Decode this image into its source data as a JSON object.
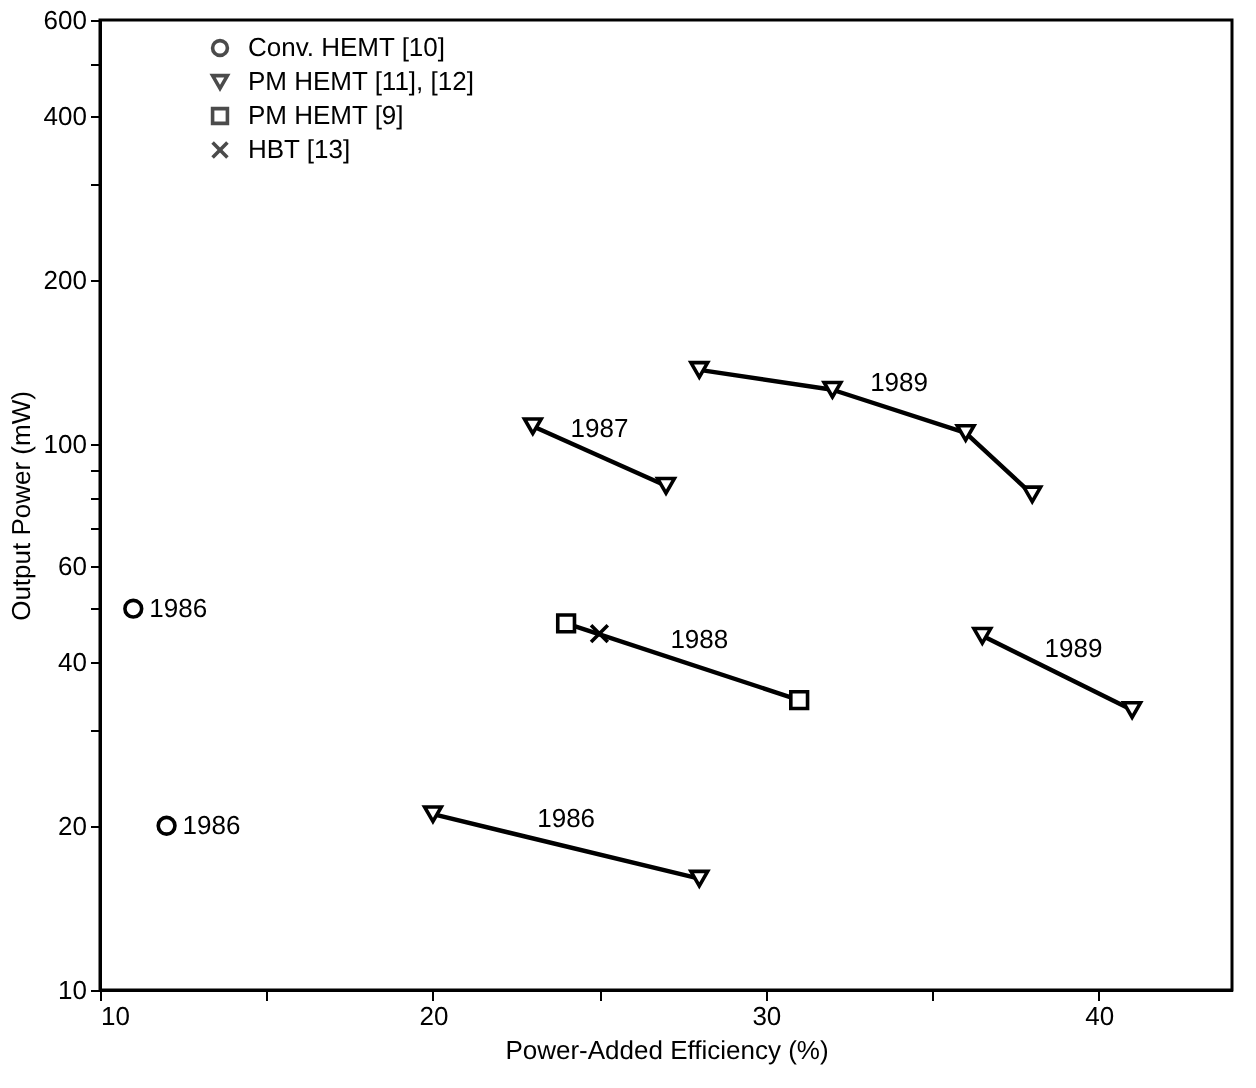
{
  "chart_data": {
    "type": "scatter",
    "xlabel": "Power-Added Efficiency (%)",
    "ylabel": "Output Power (mW)",
    "xlim": [
      10,
      44
    ],
    "xticks": [
      10,
      {
        "value": 15,
        "label": null
      },
      20,
      {
        "value": 25,
        "label": null
      },
      30,
      {
        "value": 35,
        "label": null
      },
      40
    ],
    "ylim": [
      10,
      600
    ],
    "log": "y",
    "yticks": [
      10,
      20,
      {
        "value": 30,
        "label": null
      },
      40,
      {
        "value": 50,
        "label": null
      },
      60,
      {
        "value": 70,
        "label": null
      },
      {
        "value": 80,
        "label": null
      },
      {
        "value": 90,
        "label": null
      },
      100,
      200,
      {
        "value": 300,
        "label": null
      },
      400,
      {
        "value": 500,
        "label": null
      },
      600
    ],
    "grid": false,
    "legend": "top left",
    "series": [
      {
        "name": "Conv. HEMT [10]",
        "marker": "circle",
        "color": "#000000",
        "x": [
          11,
          12
        ],
        "values": [
          50,
          20
        ]
      },
      {
        "name": "PM HEMT [11], [12]",
        "type": "line",
        "marker": "triangle",
        "color": "#000000",
        "x": [
          20,
          28
        ],
        "values": [
          21,
          16
        ]
      },
      {
        "type": "line",
        "marker": "triangle",
        "color": "#000000",
        "x": [
          23,
          27
        ],
        "values": [
          108,
          84
        ]
      },
      {
        "type": "line",
        "marker": "triangle",
        "color": "#000000",
        "x": [
          28,
          32,
          36,
          38
        ],
        "values": [
          137,
          126,
          105,
          81
        ]
      },
      {
        "type": "line",
        "marker": "triangle",
        "color": "#000000",
        "x": [
          36.5,
          41
        ],
        "values": [
          44.6,
          32.6
        ]
      },
      {
        "name": "PM HEMT [9]",
        "type": "line",
        "marker": "square",
        "color": "#000000",
        "x": [
          24,
          31
        ],
        "values": [
          47,
          34
        ]
      },
      {
        "name": "HBT [13]",
        "marker": "cross",
        "color": "#000000",
        "x": [
          25
        ],
        "values": [
          45
        ]
      }
    ],
    "annotations": [
      {
        "text": "1986",
        "x": 11,
        "y": 50
      },
      {
        "text": "1986",
        "x": 12,
        "y": 20
      },
      {
        "text": "1986",
        "x": 24,
        "y": 18.3
      },
      {
        "text": "1987",
        "x": 25,
        "y": 95
      },
      {
        "text": "1988",
        "x": 28,
        "y": 39
      },
      {
        "text": "1989",
        "x": 34,
        "y": 115
      },
      {
        "text": "1989",
        "x": 39,
        "y": 37.5
      }
    ]
  }
}
